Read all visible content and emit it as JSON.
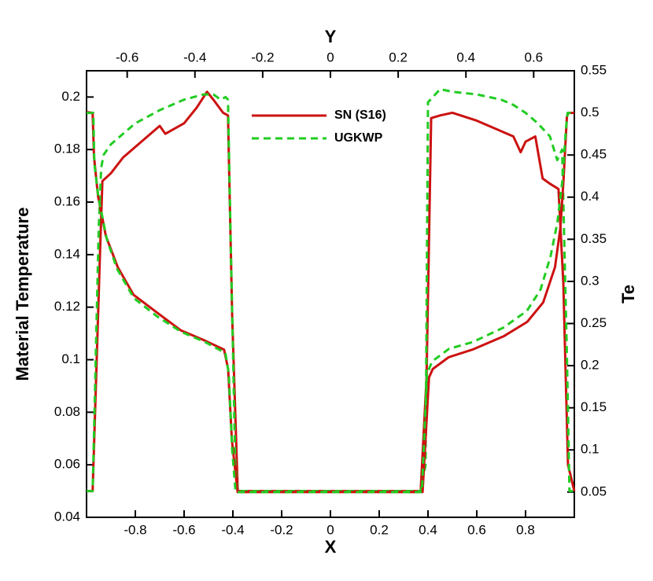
{
  "chart_data": {
    "type": "line",
    "xlabel": "X",
    "x2label": "Y",
    "ylabel": "Material Temperature",
    "y2label": "Te",
    "xlim": [
      -1,
      1
    ],
    "xticks": [
      -0.8,
      -0.6,
      -0.4,
      -0.2,
      0,
      0.2,
      0.4,
      0.6,
      0.8
    ],
    "x2lim": [
      -0.72,
      0.72
    ],
    "x2ticks": [
      -0.6,
      -0.4,
      -0.2,
      0,
      0.2,
      0.4,
      0.6
    ],
    "ylim": [
      0.04,
      0.21
    ],
    "yticks": [
      0.04,
      0.06,
      0.08,
      0.1,
      0.12,
      0.14,
      0.16,
      0.18,
      0.2
    ],
    "y2lim": [
      0.02,
      0.55
    ],
    "y2ticks": [
      0.05,
      0.1,
      0.15,
      0.2,
      0.25,
      0.3,
      0.35,
      0.4,
      0.45,
      0.5,
      0.55
    ],
    "series": [
      {
        "name": "SN (S16)",
        "color": "#cc1111",
        "dash": "none",
        "x": [
          -1,
          -0.975,
          -0.945,
          -0.935,
          -0.9,
          -0.85,
          -0.8,
          -0.75,
          -0.7,
          -0.677,
          -0.6,
          -0.548,
          -0.506,
          -0.48,
          -0.44,
          -0.42,
          -0.403,
          -0.38,
          0.37,
          0.394,
          0.413,
          0.45,
          0.5,
          0.6,
          0.7,
          0.75,
          0.78,
          0.8,
          0.84,
          0.87,
          0.9,
          0.935,
          0.955,
          0.974,
          1
        ],
        "values": [
          0.05,
          0.05,
          0.14,
          0.168,
          0.171,
          0.177,
          0.181,
          0.185,
          0.189,
          0.186,
          0.19,
          0.196,
          0.202,
          0.199,
          0.194,
          0.193,
          0.117,
          0.05,
          0.05,
          0.093,
          0.192,
          0.193,
          0.194,
          0.191,
          0.187,
          0.185,
          0.179,
          0.183,
          0.185,
          0.169,
          0.167,
          0.165,
          0.129,
          0.06,
          0.05
        ]
      },
      {
        "name": "UGKWP",
        "color": "#22cc22",
        "dash": "9,6",
        "x": [
          -1,
          -0.975,
          -0.95,
          -0.94,
          -0.93,
          -0.9,
          -0.8,
          -0.7,
          -0.6,
          -0.52,
          -0.48,
          -0.45,
          -0.43,
          -0.42,
          -0.41,
          -0.39,
          -0.38,
          0.37,
          0.39,
          0.4,
          0.42,
          0.45,
          0.5,
          0.6,
          0.7,
          0.75,
          0.8,
          0.85,
          0.9,
          0.93,
          0.95,
          0.97,
          0.98,
          1
        ],
        "values": [
          0.05,
          0.05,
          0.15,
          0.173,
          0.178,
          0.182,
          0.19,
          0.195,
          0.199,
          0.201,
          0.201,
          0.199,
          0.2,
          0.199,
          0.15,
          0.06,
          0.05,
          0.05,
          0.06,
          0.198,
          0.2,
          0.203,
          0.202,
          0.201,
          0.199,
          0.197,
          0.194,
          0.19,
          0.185,
          0.176,
          0.18,
          0.1,
          0.05,
          0.05
        ]
      },
      {
        "color": "#cc1111",
        "dash": "none",
        "axis": "y2",
        "xaxis": "x2",
        "x": [
          -0.72,
          -0.702,
          -0.698,
          -0.686,
          -0.663,
          -0.628,
          -0.581,
          -0.512,
          -0.442,
          -0.372,
          -0.314,
          -0.302,
          -0.291,
          -0.274,
          0.272,
          0.291,
          0.302,
          0.349,
          0.419,
          0.512,
          0.581,
          0.628,
          0.663,
          0.679,
          0.688,
          0.698,
          0.702,
          0.72
        ],
        "values": [
          0.501,
          0.5,
          0.448,
          0.401,
          0.354,
          0.317,
          0.284,
          0.263,
          0.242,
          0.23,
          0.219,
          0.196,
          0.112,
          0.05,
          0.05,
          0.186,
          0.196,
          0.21,
          0.219,
          0.235,
          0.252,
          0.275,
          0.317,
          0.364,
          0.42,
          0.495,
          0.5,
          0.5
        ]
      },
      {
        "color": "#22cc22",
        "dash": "9,6",
        "axis": "y2",
        "xaxis": "x2",
        "x": [
          -0.72,
          -0.7,
          -0.697,
          -0.685,
          -0.66,
          -0.63,
          -0.58,
          -0.51,
          -0.44,
          -0.37,
          -0.31,
          -0.3,
          -0.29,
          -0.28,
          0.27,
          0.285,
          0.3,
          0.35,
          0.42,
          0.51,
          0.58,
          0.62,
          0.65,
          0.67,
          0.685,
          0.695,
          0.7,
          0.72
        ],
        "values": [
          0.5,
          0.5,
          0.44,
          0.4,
          0.35,
          0.315,
          0.28,
          0.258,
          0.24,
          0.228,
          0.215,
          0.19,
          0.1,
          0.05,
          0.05,
          0.19,
          0.205,
          0.22,
          0.228,
          0.245,
          0.265,
          0.29,
          0.33,
          0.37,
          0.42,
          0.48,
          0.5,
          0.5
        ]
      }
    ]
  }
}
